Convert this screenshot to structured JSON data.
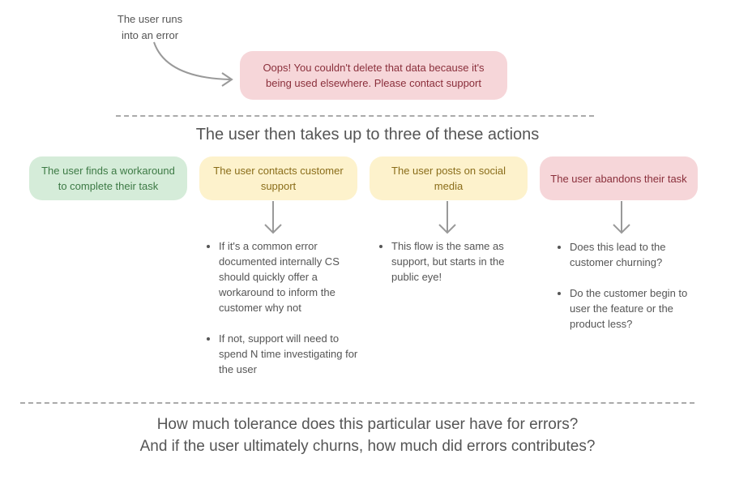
{
  "note": {
    "line1": "The user runs",
    "line2": "into an error"
  },
  "error_message": "Oops! You couldn't delete that data because it's being used elsewhere. Please contact support",
  "section_title": "The user then takes up to three of these actions",
  "actions": [
    {
      "label": "The user finds a workaround to complete their task",
      "color": "#d5ecd9"
    },
    {
      "label": "The user contacts customer support",
      "color": "#fdf2cc",
      "bullets": [
        "If it's a common error documented internally CS should quickly offer a workaround to inform the customer why not",
        "If not, support will need to spend N time investigating for the user"
      ]
    },
    {
      "label": "The user posts on social media",
      "color": "#fdf2cc",
      "bullets": [
        "This flow is the same as support, but starts in the public eye!"
      ]
    },
    {
      "label": "The user abandons their task",
      "color": "#f6d6d9",
      "bullets": [
        "Does this lead to the customer churning?",
        "Do the customer begin to user the feature or the product less?"
      ]
    }
  ],
  "closing": {
    "line1": "How much tolerance does this particular user have for errors?",
    "line2": "And if the user ultimately churns, how much did errors contributes?"
  }
}
